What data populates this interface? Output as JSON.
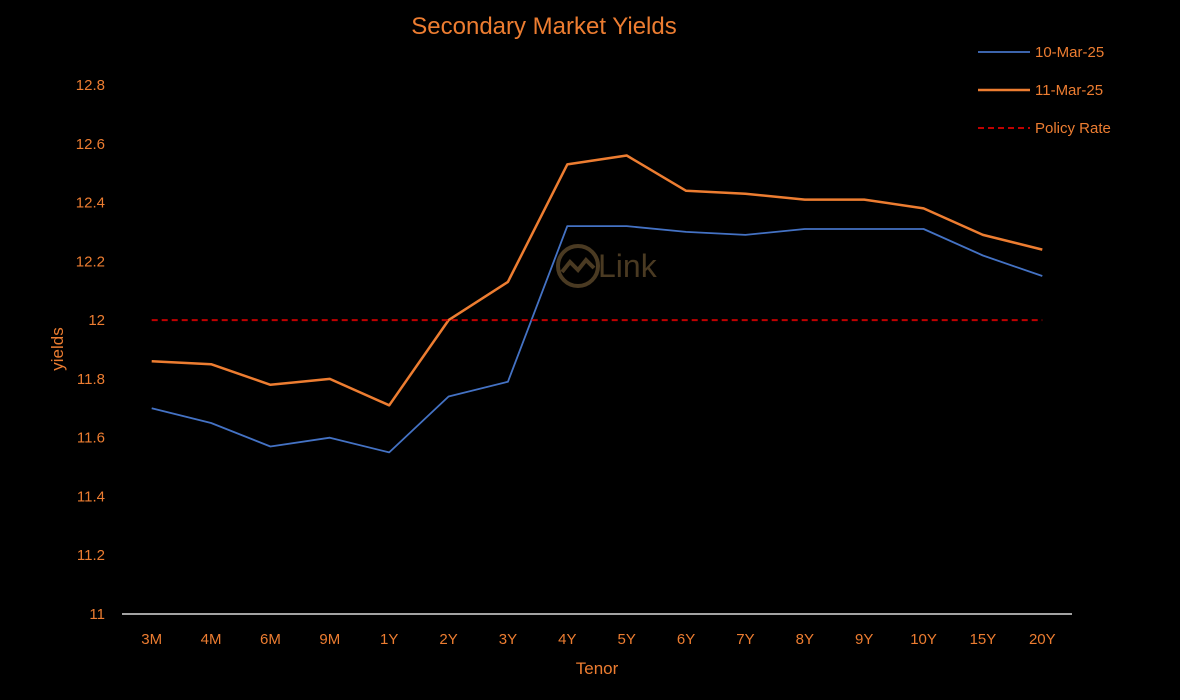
{
  "chart_data": {
    "type": "line",
    "title": "Secondary Market Yields",
    "xlabel": "Tenor",
    "ylabel": "yields",
    "ylim": [
      11,
      12.8
    ],
    "yticks": [
      11,
      11.2,
      11.4,
      11.6,
      11.8,
      12,
      12.2,
      12.4,
      12.6,
      12.8
    ],
    "grid": false,
    "legend_position": "top-right",
    "categories": [
      "3M",
      "4M",
      "6M",
      "9M",
      "1Y",
      "2Y",
      "3Y",
      "4Y",
      "5Y",
      "6Y",
      "7Y",
      "8Y",
      "9Y",
      "10Y",
      "15Y",
      "20Y"
    ],
    "series": [
      {
        "name": "10-Mar-25",
        "color": "#4472c4",
        "style": "solid",
        "values": [
          11.7,
          11.65,
          11.57,
          11.6,
          11.55,
          11.74,
          11.79,
          12.32,
          12.32,
          12.3,
          12.29,
          12.31,
          12.31,
          12.31,
          12.22,
          12.15
        ]
      },
      {
        "name": "11-Mar-25",
        "color": "#ed7d31",
        "style": "solid",
        "values": [
          11.86,
          11.85,
          11.78,
          11.8,
          11.71,
          12.0,
          12.13,
          12.53,
          12.56,
          12.44,
          12.43,
          12.41,
          12.41,
          12.38,
          12.29,
          12.24
        ]
      },
      {
        "name": "Policy Rate",
        "color": "#c00000",
        "style": "dashed",
        "values": [
          12,
          12,
          12,
          12,
          12,
          12,
          12,
          12,
          12,
          12,
          12,
          12,
          12,
          12,
          12,
          12
        ]
      }
    ],
    "watermark": "Link"
  }
}
